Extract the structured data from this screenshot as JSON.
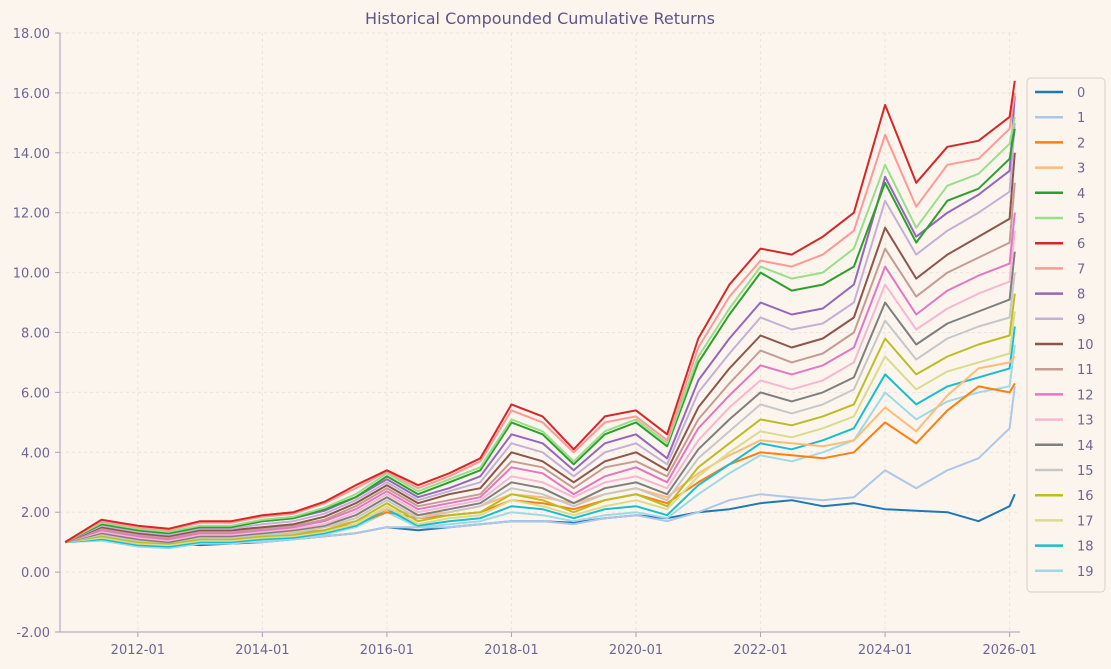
{
  "chart_data": {
    "type": "line",
    "title": "Historical Compounded Cumulative Returns",
    "xlabel": "",
    "ylabel": "",
    "x_range": [
      "2010-10",
      "2026-03"
    ],
    "x_ticks": [
      "2012-01",
      "2014-01",
      "2016-01",
      "2018-01",
      "2020-01",
      "2022-01",
      "2024-01",
      "2026-01"
    ],
    "ylim": [
      -2,
      18
    ],
    "y_ticks": [
      "-2.00",
      "0.00",
      "2.00",
      "4.00",
      "6.00",
      "8.00",
      "10.00",
      "12.00",
      "14.00",
      "16.00",
      "18.00"
    ],
    "grid": true,
    "legend_position": "right",
    "x": [
      "2010-11",
      "2011-06",
      "2012-01",
      "2012-07",
      "2013-01",
      "2013-07",
      "2014-01",
      "2014-07",
      "2015-01",
      "2015-07",
      "2016-01",
      "2016-07",
      "2017-01",
      "2017-07",
      "2018-01",
      "2018-07",
      "2019-01",
      "2019-07",
      "2020-01",
      "2020-07",
      "2021-01",
      "2021-07",
      "2022-01",
      "2022-07",
      "2023-01",
      "2023-07",
      "2024-01",
      "2024-07",
      "2025-01",
      "2025-07",
      "2026-01",
      "2026-02"
    ],
    "series": [
      {
        "name": "0",
        "color": "#1f77b4",
        "values": [
          1.0,
          1.15,
          0.95,
          0.95,
          0.9,
          0.95,
          1.0,
          1.1,
          1.2,
          1.3,
          1.5,
          1.4,
          1.5,
          1.6,
          1.7,
          1.7,
          1.65,
          1.8,
          1.9,
          1.8,
          2.0,
          2.1,
          2.3,
          2.4,
          2.2,
          2.3,
          2.1,
          2.05,
          2.0,
          1.7,
          2.2,
          2.6
        ]
      },
      {
        "name": "1",
        "color": "#aec7e8",
        "values": [
          1.0,
          1.1,
          1.0,
          1.0,
          1.0,
          1.0,
          1.0,
          1.1,
          1.2,
          1.3,
          1.5,
          1.5,
          1.5,
          1.6,
          1.7,
          1.7,
          1.6,
          1.8,
          1.9,
          1.7,
          2.0,
          2.4,
          2.6,
          2.5,
          2.4,
          2.5,
          3.4,
          2.8,
          3.4,
          3.8,
          4.8,
          6.2
        ]
      },
      {
        "name": "2",
        "color": "#ff7f0e",
        "values": [
          1.0,
          1.3,
          1.2,
          1.1,
          1.2,
          1.2,
          1.2,
          1.3,
          1.4,
          1.6,
          2.0,
          1.8,
          1.9,
          2.0,
          2.4,
          2.3,
          2.1,
          2.4,
          2.6,
          2.3,
          3.0,
          3.6,
          4.0,
          3.9,
          3.8,
          4.0,
          5.0,
          4.3,
          5.4,
          6.2,
          6.0,
          6.3
        ]
      },
      {
        "name": "3",
        "color": "#ffbb78",
        "values": [
          1.0,
          1.35,
          1.25,
          1.15,
          1.25,
          1.25,
          1.3,
          1.35,
          1.5,
          1.7,
          2.1,
          1.9,
          2.0,
          2.2,
          2.6,
          2.5,
          2.3,
          2.6,
          2.8,
          2.5,
          3.3,
          3.9,
          4.4,
          4.3,
          4.2,
          4.4,
          5.5,
          4.7,
          5.9,
          6.8,
          7.0,
          7.2
        ]
      },
      {
        "name": "4",
        "color": "#2ca02c",
        "values": [
          1.0,
          1.6,
          1.4,
          1.3,
          1.5,
          1.5,
          1.7,
          1.8,
          2.1,
          2.5,
          3.2,
          2.6,
          3.0,
          3.4,
          5.0,
          4.6,
          3.6,
          4.6,
          5.0,
          4.2,
          7.0,
          8.6,
          10.0,
          9.4,
          9.6,
          10.2,
          13.0,
          11.0,
          12.4,
          12.8,
          13.8,
          14.8
        ]
      },
      {
        "name": "5",
        "color": "#98df8a",
        "values": [
          1.0,
          1.65,
          1.45,
          1.35,
          1.55,
          1.55,
          1.75,
          1.85,
          2.15,
          2.6,
          3.3,
          2.7,
          3.1,
          3.5,
          5.1,
          4.7,
          3.7,
          4.7,
          5.1,
          4.3,
          7.2,
          8.8,
          10.2,
          9.8,
          10.0,
          10.8,
          13.6,
          11.5,
          12.9,
          13.3,
          14.3,
          15.2
        ]
      },
      {
        "name": "6",
        "color": "#d62728",
        "values": [
          1.0,
          1.75,
          1.55,
          1.45,
          1.7,
          1.7,
          1.9,
          2.0,
          2.35,
          2.9,
          3.4,
          2.9,
          3.3,
          3.8,
          5.6,
          5.2,
          4.1,
          5.2,
          5.4,
          4.6,
          7.8,
          9.6,
          10.8,
          10.6,
          11.2,
          12.0,
          15.6,
          13.0,
          14.2,
          14.4,
          15.2,
          16.4
        ]
      },
      {
        "name": "7",
        "color": "#ff9896",
        "values": [
          1.0,
          1.7,
          1.5,
          1.4,
          1.65,
          1.65,
          1.85,
          1.95,
          2.3,
          2.8,
          3.35,
          2.8,
          3.2,
          3.7,
          5.4,
          5.0,
          4.0,
          5.0,
          5.2,
          4.4,
          7.5,
          9.2,
          10.4,
          10.2,
          10.6,
          11.4,
          14.6,
          12.2,
          13.6,
          13.8,
          14.8,
          16.0
        ]
      },
      {
        "name": "8",
        "color": "#9467bd",
        "values": [
          1.0,
          1.6,
          1.4,
          1.3,
          1.5,
          1.5,
          1.7,
          1.8,
          2.05,
          2.5,
          3.1,
          2.5,
          2.8,
          3.2,
          4.6,
          4.3,
          3.4,
          4.3,
          4.6,
          3.8,
          6.4,
          7.8,
          9.0,
          8.6,
          8.8,
          9.6,
          13.2,
          11.2,
          12.0,
          12.6,
          13.4,
          15.9
        ]
      },
      {
        "name": "9",
        "color": "#c5b0d5",
        "values": [
          1.0,
          1.55,
          1.35,
          1.25,
          1.45,
          1.45,
          1.6,
          1.7,
          1.95,
          2.4,
          3.0,
          2.4,
          2.7,
          3.0,
          4.3,
          4.0,
          3.2,
          4.0,
          4.3,
          3.6,
          6.0,
          7.3,
          8.5,
          8.1,
          8.3,
          9.0,
          12.4,
          10.6,
          11.4,
          12.0,
          12.7,
          15.0
        ]
      },
      {
        "name": "10",
        "color": "#8c564b",
        "values": [
          1.0,
          1.5,
          1.3,
          1.2,
          1.4,
          1.4,
          1.5,
          1.6,
          1.85,
          2.3,
          2.9,
          2.3,
          2.6,
          2.8,
          4.0,
          3.7,
          3.0,
          3.7,
          4.0,
          3.4,
          5.5,
          6.8,
          7.9,
          7.5,
          7.8,
          8.5,
          11.5,
          9.8,
          10.6,
          11.2,
          11.8,
          14.0
        ]
      },
      {
        "name": "11",
        "color": "#c49c94",
        "values": [
          1.0,
          1.45,
          1.25,
          1.15,
          1.35,
          1.35,
          1.45,
          1.55,
          1.75,
          2.2,
          2.8,
          2.2,
          2.4,
          2.6,
          3.7,
          3.5,
          2.8,
          3.5,
          3.7,
          3.2,
          5.1,
          6.3,
          7.4,
          7.0,
          7.3,
          8.0,
          10.8,
          9.2,
          10.0,
          10.5,
          11.0,
          13.0
        ]
      },
      {
        "name": "12",
        "color": "#e377c2",
        "values": [
          1.0,
          1.4,
          1.2,
          1.1,
          1.3,
          1.3,
          1.4,
          1.5,
          1.7,
          2.1,
          2.7,
          2.1,
          2.3,
          2.5,
          3.5,
          3.3,
          2.6,
          3.2,
          3.5,
          3.0,
          4.8,
          5.9,
          6.9,
          6.6,
          6.9,
          7.5,
          10.2,
          8.6,
          9.4,
          9.9,
          10.3,
          12.0
        ]
      },
      {
        "name": "13",
        "color": "#f7b6d2",
        "values": [
          1.0,
          1.35,
          1.15,
          1.05,
          1.25,
          1.25,
          1.35,
          1.45,
          1.6,
          2.0,
          2.6,
          2.0,
          2.2,
          2.4,
          3.2,
          3.0,
          2.5,
          3.0,
          3.2,
          2.8,
          4.4,
          5.5,
          6.4,
          6.1,
          6.4,
          7.0,
          9.6,
          8.1,
          8.8,
          9.3,
          9.7,
          11.4
        ]
      },
      {
        "name": "14",
        "color": "#7f7f7f",
        "values": [
          1.0,
          1.3,
          1.1,
          1.0,
          1.2,
          1.2,
          1.3,
          1.4,
          1.55,
          1.9,
          2.5,
          1.9,
          2.1,
          2.3,
          3.0,
          2.8,
          2.3,
          2.8,
          3.0,
          2.6,
          4.1,
          5.1,
          6.0,
          5.7,
          6.0,
          6.5,
          9.0,
          7.6,
          8.3,
          8.7,
          9.1,
          10.7
        ]
      },
      {
        "name": "15",
        "color": "#c7c7c7",
        "values": [
          1.0,
          1.25,
          1.05,
          1.0,
          1.15,
          1.15,
          1.25,
          1.3,
          1.5,
          1.8,
          2.4,
          1.8,
          2.0,
          2.2,
          2.8,
          2.6,
          2.2,
          2.6,
          2.8,
          2.4,
          3.8,
          4.7,
          5.6,
          5.3,
          5.6,
          6.1,
          8.4,
          7.1,
          7.8,
          8.2,
          8.5,
          10.0
        ]
      },
      {
        "name": "16",
        "color": "#bcbd22",
        "values": [
          1.0,
          1.2,
          1.0,
          0.95,
          1.1,
          1.1,
          1.2,
          1.25,
          1.4,
          1.7,
          2.3,
          1.7,
          1.9,
          2.0,
          2.6,
          2.4,
          2.0,
          2.4,
          2.6,
          2.2,
          3.5,
          4.3,
          5.1,
          4.9,
          5.2,
          5.6,
          7.8,
          6.6,
          7.2,
          7.6,
          7.9,
          9.3
        ]
      },
      {
        "name": "17",
        "color": "#dbdb8d",
        "values": [
          1.0,
          1.15,
          0.95,
          0.9,
          1.05,
          1.05,
          1.15,
          1.2,
          1.35,
          1.6,
          2.2,
          1.6,
          1.8,
          1.9,
          2.4,
          2.2,
          1.9,
          2.2,
          2.4,
          2.1,
          3.2,
          4.0,
          4.7,
          4.5,
          4.8,
          5.2,
          7.2,
          6.1,
          6.7,
          7.0,
          7.3,
          8.7
        ]
      },
      {
        "name": "18",
        "color": "#17becf",
        "values": [
          1.0,
          1.1,
          0.9,
          0.85,
          1.0,
          1.0,
          1.1,
          1.15,
          1.3,
          1.55,
          2.1,
          1.55,
          1.7,
          1.8,
          2.2,
          2.1,
          1.8,
          2.1,
          2.2,
          1.9,
          2.9,
          3.6,
          4.3,
          4.1,
          4.4,
          4.8,
          6.6,
          5.6,
          6.2,
          6.5,
          6.8,
          8.2
        ]
      },
      {
        "name": "19",
        "color": "#9edae5",
        "values": [
          1.0,
          1.05,
          0.85,
          0.8,
          0.95,
          0.95,
          1.05,
          1.1,
          1.25,
          1.5,
          2.0,
          1.5,
          1.6,
          1.7,
          2.0,
          1.9,
          1.7,
          1.9,
          2.0,
          1.8,
          2.6,
          3.3,
          3.9,
          3.7,
          4.0,
          4.4,
          6.0,
          5.1,
          5.7,
          6.0,
          6.2,
          7.6
        ]
      }
    ]
  }
}
